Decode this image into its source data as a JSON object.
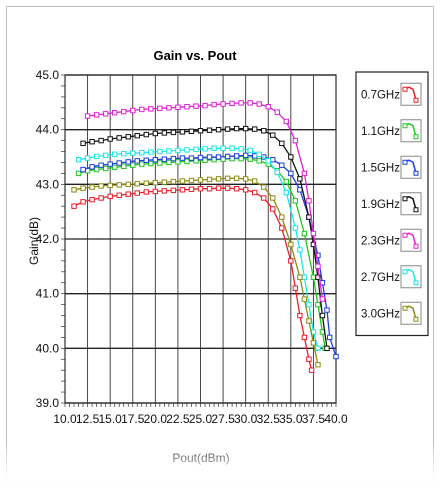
{
  "chart_data": {
    "type": "line",
    "title": "Gain vs. Pout",
    "xlabel": "Pout(dBm)",
    "ylabel": "Gain(dB)",
    "xlim": [
      10.0,
      40.0
    ],
    "ylim": [
      39.0,
      45.0
    ],
    "xticks": [
      "10.0",
      "12.5",
      "15.0",
      "17.5",
      "20.0",
      "22.5",
      "25.0",
      "27.5",
      "30.0",
      "32.5",
      "35.0",
      "37.5",
      "40.0"
    ],
    "yticks": [
      "39.0",
      "40.0",
      "41.0",
      "42.0",
      "43.0",
      "44.0",
      "45.0"
    ],
    "grid": true,
    "legend_position": "right",
    "series": [
      {
        "name": "0.7GHz",
        "color": "#e8202a",
        "marker": "square",
        "x": [
          11,
          12,
          13,
          14,
          15,
          16,
          17,
          18,
          19,
          20,
          21,
          22,
          23,
          24,
          25,
          26,
          27,
          28,
          29,
          30,
          31,
          32,
          33,
          34,
          35,
          35.5,
          36,
          36.5,
          37,
          37.3
        ],
        "y": [
          42.6,
          42.68,
          42.72,
          42.75,
          42.78,
          42.8,
          42.82,
          42.84,
          42.86,
          42.87,
          42.88,
          42.89,
          42.9,
          42.91,
          42.92,
          42.92,
          42.93,
          42.93,
          42.92,
          42.9,
          42.85,
          42.75,
          42.55,
          42.2,
          41.6,
          41.1,
          40.6,
          40.2,
          39.8,
          39.6
        ]
      },
      {
        "name": "1.1GHz",
        "color": "#1fc61f",
        "marker": "square",
        "x": [
          11.5,
          12.5,
          13.5,
          14.5,
          15.5,
          16.5,
          17.5,
          18.5,
          19.5,
          20.5,
          21.5,
          22.5,
          23.5,
          24.5,
          25.5,
          26.5,
          27.5,
          28.5,
          29.5,
          30.5,
          31.5,
          32.5,
          33.5,
          34.5,
          35.5,
          36.5,
          37.5,
          38,
          38.5,
          38.8
        ],
        "y": [
          43.2,
          43.25,
          43.27,
          43.29,
          43.31,
          43.33,
          43.35,
          43.37,
          43.38,
          43.39,
          43.4,
          43.41,
          43.42,
          43.43,
          43.44,
          43.45,
          43.46,
          43.47,
          43.47,
          43.46,
          43.43,
          43.37,
          43.25,
          43.05,
          42.7,
          42.1,
          41.3,
          40.8,
          40.3,
          40.0
        ]
      },
      {
        "name": "1.5GHz",
        "color": "#1c3fe0",
        "marker": "square",
        "x": [
          12,
          13,
          14,
          15,
          16,
          17,
          18,
          19,
          20,
          21,
          22,
          23,
          24,
          25,
          26,
          27,
          28,
          29,
          30,
          31,
          32,
          33,
          34,
          35,
          36,
          37,
          38,
          38.5,
          39,
          39.3,
          40
        ],
        "y": [
          43.27,
          43.32,
          43.35,
          43.37,
          43.39,
          43.41,
          43.43,
          43.44,
          43.45,
          43.46,
          43.47,
          43.48,
          43.48,
          43.49,
          43.5,
          43.5,
          43.51,
          43.52,
          43.53,
          43.52,
          43.5,
          43.45,
          43.35,
          43.2,
          42.9,
          42.4,
          41.7,
          41.2,
          40.7,
          40.2,
          39.85
        ]
      },
      {
        "name": "1.9GHz",
        "color": "#111111",
        "marker": "square",
        "x": [
          12,
          13,
          14,
          15,
          16,
          17,
          18,
          19,
          20,
          21,
          22,
          23,
          24,
          25,
          26,
          27,
          28,
          29,
          30,
          31,
          32,
          33,
          34,
          35,
          36,
          37,
          37.5,
          38,
          38.5,
          39
        ],
        "y": [
          43.75,
          43.78,
          43.8,
          43.83,
          43.85,
          43.87,
          43.89,
          43.91,
          43.93,
          43.94,
          43.95,
          43.96,
          43.97,
          43.98,
          43.99,
          44.0,
          44.01,
          44.02,
          44.02,
          44.01,
          43.98,
          43.9,
          43.75,
          43.5,
          43.1,
          42.4,
          41.9,
          41.3,
          40.6,
          40.0
        ]
      },
      {
        "name": "2.3GHz",
        "color": "#e020d8",
        "marker": "square",
        "x": [
          12.5,
          13.5,
          14.5,
          15.5,
          16.5,
          17.5,
          18.5,
          19.5,
          20.5,
          21.5,
          22.5,
          23.5,
          24.5,
          25.5,
          26.5,
          27.5,
          28.5,
          29.5,
          30.5,
          31.5,
          32.5,
          33.5,
          34.5,
          35.5,
          36.5,
          37,
          37.5,
          38,
          38.5
        ],
        "y": [
          44.25,
          44.27,
          44.29,
          44.31,
          44.33,
          44.35,
          44.37,
          44.38,
          44.39,
          44.4,
          44.41,
          44.42,
          44.43,
          44.44,
          44.46,
          44.47,
          44.48,
          44.49,
          44.49,
          44.47,
          44.42,
          44.32,
          44.15,
          43.8,
          43.2,
          42.7,
          42.1,
          41.5,
          40.9
        ]
      },
      {
        "name": "2.7GHz",
        "color": "#18e8e8",
        "marker": "square",
        "x": [
          11.5,
          12.5,
          13.5,
          14.5,
          15.5,
          16.5,
          17.5,
          18.5,
          19.5,
          20.5,
          21.5,
          22.5,
          23.5,
          24.5,
          25.5,
          26.5,
          27.5,
          28.5,
          29.5,
          30.5,
          31.5,
          32.5,
          33.5,
          34.5,
          35.5,
          36,
          36.5,
          37,
          37.5,
          38
        ],
        "y": [
          43.45,
          43.48,
          43.51,
          43.53,
          43.55,
          43.56,
          43.57,
          43.58,
          43.59,
          43.6,
          43.61,
          43.62,
          43.63,
          43.64,
          43.65,
          43.66,
          43.66,
          43.66,
          43.65,
          43.62,
          43.55,
          43.43,
          43.22,
          42.85,
          42.2,
          41.8,
          41.3,
          40.8,
          40.3,
          40.0
        ]
      },
      {
        "name": "3.0GHz",
        "color": "#8c8c14",
        "marker": "square",
        "x": [
          11,
          12,
          13,
          14,
          15,
          16,
          17,
          18,
          19,
          20,
          21,
          22,
          23,
          24,
          25,
          26,
          27,
          28,
          29,
          30,
          31,
          32,
          33,
          34,
          35,
          36,
          36.5,
          37,
          37.5,
          38
        ],
        "y": [
          42.9,
          42.93,
          42.95,
          42.97,
          42.98,
          42.99,
          43.0,
          43.01,
          43.02,
          43.03,
          43.04,
          43.05,
          43.06,
          43.07,
          43.08,
          43.09,
          43.1,
          43.11,
          43.11,
          43.1,
          43.06,
          42.95,
          42.75,
          42.4,
          41.9,
          41.3,
          40.9,
          40.5,
          40.1,
          39.7
        ]
      }
    ]
  }
}
